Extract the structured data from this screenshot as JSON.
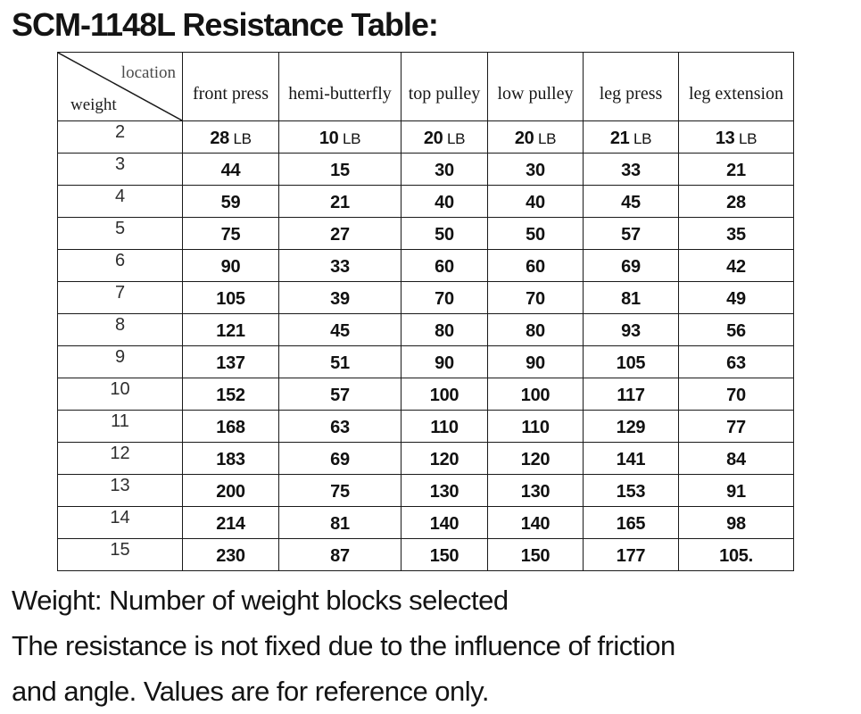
{
  "title": "SCM-1148L Resistance Table:",
  "table": {
    "corner": {
      "top_label": "location",
      "bottom_label": "weight"
    },
    "columns": [
      "front press",
      "hemi-butterfly",
      "top pulley",
      "low pulley",
      "leg press",
      "leg extension"
    ],
    "rows": [
      {
        "weight": "2",
        "unit": "LB",
        "values": [
          "28",
          "10",
          "20",
          "20",
          "21",
          "13"
        ]
      },
      {
        "weight": "3",
        "values": [
          "44",
          "15",
          "30",
          "30",
          "33",
          "21"
        ]
      },
      {
        "weight": "4",
        "values": [
          "59",
          "21",
          "40",
          "40",
          "45",
          "28"
        ]
      },
      {
        "weight": "5",
        "values": [
          "75",
          "27",
          "50",
          "50",
          "57",
          "35"
        ]
      },
      {
        "weight": "6",
        "values": [
          "90",
          "33",
          "60",
          "60",
          "69",
          "42"
        ]
      },
      {
        "weight": "7",
        "values": [
          "105",
          "39",
          "70",
          "70",
          "81",
          "49"
        ]
      },
      {
        "weight": "8",
        "values": [
          "121",
          "45",
          "80",
          "80",
          "93",
          "56"
        ]
      },
      {
        "weight": "9",
        "values": [
          "137",
          "51",
          "90",
          "90",
          "105",
          "63"
        ]
      },
      {
        "weight": "10",
        "values": [
          "152",
          "57",
          "100",
          "100",
          "117",
          "70"
        ]
      },
      {
        "weight": "11",
        "values": [
          "168",
          "63",
          "110",
          "110",
          "129",
          "77"
        ]
      },
      {
        "weight": "12",
        "values": [
          "183",
          "69",
          "120",
          "120",
          "141",
          "84"
        ]
      },
      {
        "weight": "13",
        "values": [
          "200",
          "75",
          "130",
          "130",
          "153",
          "91"
        ]
      },
      {
        "weight": "14",
        "values": [
          "214",
          "81",
          "140",
          "140",
          "165",
          "98"
        ]
      },
      {
        "weight": "15",
        "values": [
          "230",
          "87",
          "150",
          "150",
          "177",
          "105."
        ]
      }
    ]
  },
  "notes": [
    "Weight: Number of weight blocks selected",
    "The resistance is not fixed due to the influence of friction",
    "and angle. Values are for reference only."
  ],
  "colors": {
    "text": "#141414",
    "border": "#1a1a1a",
    "corner_location_text": "#4a4a4a",
    "background": "#ffffff"
  }
}
